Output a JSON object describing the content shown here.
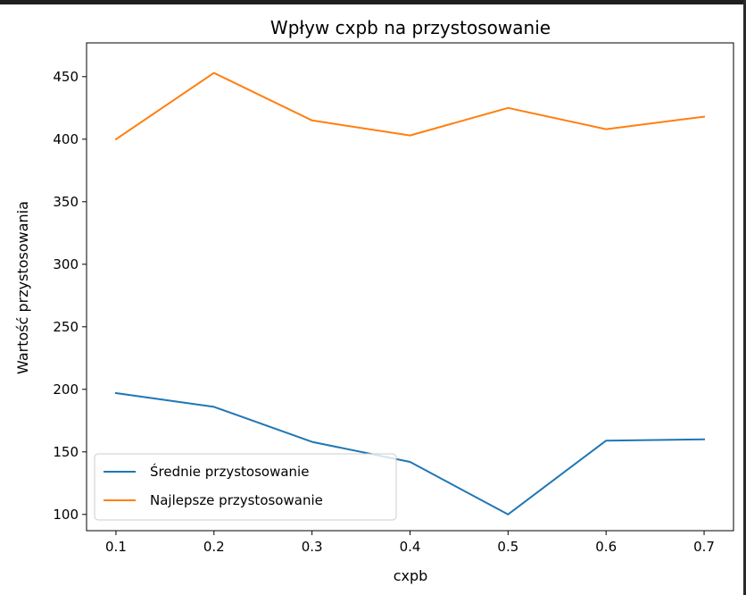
{
  "chart_data": {
    "type": "line",
    "title": "Wpływ cxpb na przystosowanie",
    "xlabel": "cxpb",
    "ylabel": "Wartość przystosowania",
    "x": [
      0.1,
      0.2,
      0.3,
      0.4,
      0.5,
      0.6,
      0.7
    ],
    "x_tick_labels": [
      "0.1",
      "0.2",
      "0.3",
      "0.4",
      "0.5",
      "0.6",
      "0.7"
    ],
    "y_ticks": [
      100,
      150,
      200,
      250,
      300,
      350,
      400,
      450
    ],
    "xlim": [
      0.07,
      0.73
    ],
    "ylim": [
      87,
      477
    ],
    "grid": false,
    "legend_position": "lower-left",
    "series": [
      {
        "name": "Średnie przystosowanie",
        "color": "#1f77b4",
        "values": [
          197,
          186,
          158,
          142,
          100,
          159,
          160
        ]
      },
      {
        "name": "Najlepsze przystosowanie",
        "color": "#ff7f0e",
        "values": [
          400,
          453,
          415,
          403,
          425,
          408,
          418
        ]
      }
    ]
  }
}
